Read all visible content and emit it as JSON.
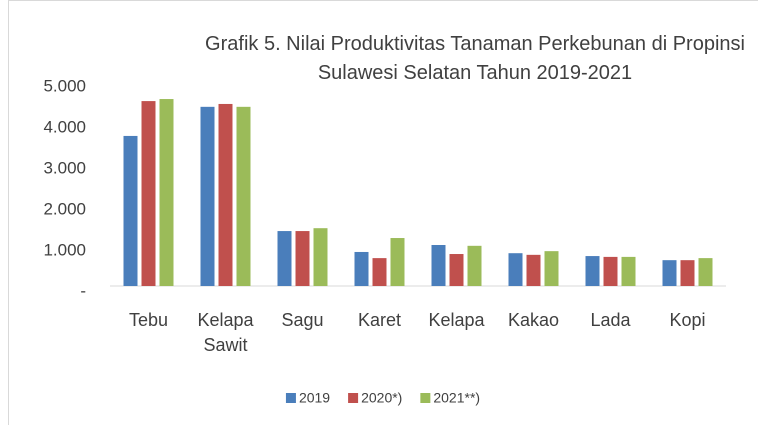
{
  "chart_data": {
    "type": "bar",
    "title": "Grafik 5. Nilai Produktivitas Tanaman Perkebunan di Propinsi Sulawesi Selatan Tahun 2019-2021",
    "categories": [
      "Tebu",
      "Kelapa Sawit",
      "Sagu",
      "Karet",
      "Kelapa",
      "Kakao",
      "Lada",
      "Kopi"
    ],
    "series": [
      {
        "name": "2019",
        "color": "#4a7ebb",
        "values": [
          3660,
          4370,
          1340,
          830,
          1000,
          800,
          730,
          630
        ]
      },
      {
        "name": "2020*)",
        "color": "#c0504d",
        "values": [
          4510,
          4440,
          1340,
          680,
          780,
          760,
          710,
          630
        ]
      },
      {
        "name": "2021**)",
        "color": "#9bbb59",
        "values": [
          4560,
          4370,
          1410,
          1170,
          980,
          850,
          710,
          680
        ]
      }
    ],
    "ylim": [
      0,
      5000
    ],
    "yticks": [
      {
        "value": 0,
        "label": "-"
      },
      {
        "value": 1000,
        "label": "1.000"
      },
      {
        "value": 2000,
        "label": "2.000"
      },
      {
        "value": 3000,
        "label": "3.000"
      },
      {
        "value": 4000,
        "label": "4.000"
      },
      {
        "value": 5000,
        "label": "5.000"
      }
    ],
    "grid": false,
    "legend": "bottom"
  }
}
